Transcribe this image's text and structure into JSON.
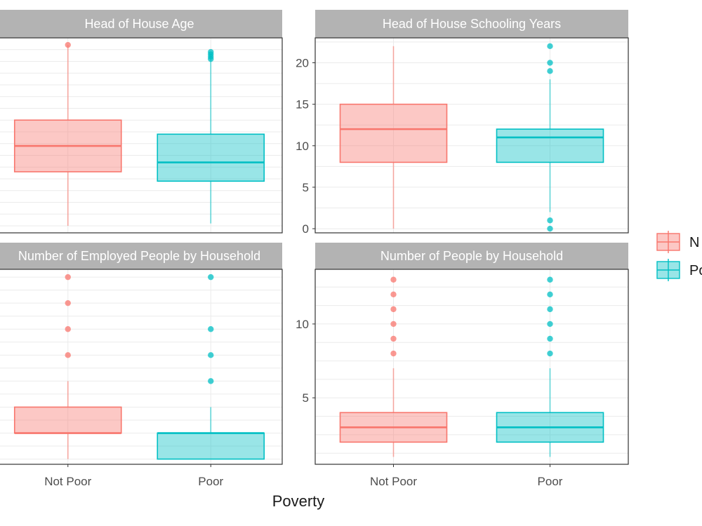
{
  "chart_data": [
    {
      "type": "box",
      "title": "Head of House Age",
      "categories": [
        "Not Poor",
        "Poor"
      ],
      "ylim": [
        17,
        100
      ],
      "yticks": [],
      "boxes": [
        {
          "category": "Not Poor",
          "color": "#F8766D",
          "whisker_low": 20,
          "q1": 43,
          "median": 54,
          "q3": 65,
          "whisker_high": 97,
          "outliers": [
            97
          ]
        },
        {
          "category": "Poor",
          "color": "#00BFC4",
          "whisker_low": 21,
          "q1": 39,
          "median": 47,
          "q3": 59,
          "whisker_high": 93,
          "outliers": [
            91,
            92,
            93,
            94
          ]
        }
      ],
      "show_xticks": false
    },
    {
      "type": "box",
      "title": "Head of House Schooling Years",
      "categories": [
        "Not Poor",
        "Poor"
      ],
      "ylim": [
        -0.5,
        23
      ],
      "yticks": [
        0,
        5,
        10,
        15,
        20
      ],
      "boxes": [
        {
          "category": "Not Poor",
          "color": "#F8766D",
          "whisker_low": 0,
          "q1": 8,
          "median": 12,
          "q3": 15,
          "whisker_high": 22,
          "outliers": []
        },
        {
          "category": "Poor",
          "color": "#00BFC4",
          "whisker_low": 2,
          "q1": 8,
          "median": 11,
          "q3": 12,
          "whisker_high": 18,
          "outliers": [
            0,
            1,
            19,
            20,
            22
          ]
        }
      ],
      "show_xticks": false
    },
    {
      "type": "box",
      "title": "Number of Employed People by Household",
      "categories": [
        "Not Poor",
        "Poor"
      ],
      "ylim": [
        -0.2,
        7.3
      ],
      "yticks": [],
      "boxes": [
        {
          "category": "Not Poor",
          "color": "#F8766D",
          "whisker_low": 0,
          "q1": 1,
          "median": 1,
          "q3": 2,
          "whisker_high": 3,
          "outliers": [
            4,
            5,
            6,
            7
          ]
        },
        {
          "category": "Poor",
          "color": "#00BFC4",
          "whisker_low": 0,
          "q1": 0,
          "median": 1,
          "q3": 1,
          "whisker_high": 2,
          "outliers": [
            3,
            4,
            5,
            7
          ]
        }
      ],
      "show_xticks": true
    },
    {
      "type": "box",
      "title": "Number of People by Household",
      "categories": [
        "Not Poor",
        "Poor"
      ],
      "ylim": [
        0.5,
        13.7
      ],
      "yticks": [
        5,
        10
      ],
      "boxes": [
        {
          "category": "Not Poor",
          "color": "#F8766D",
          "whisker_low": 1,
          "q1": 2,
          "median": 3,
          "q3": 4,
          "whisker_high": 7,
          "outliers": [
            8,
            9,
            10,
            11,
            12,
            13
          ]
        },
        {
          "category": "Poor",
          "color": "#00BFC4",
          "whisker_low": 1,
          "q1": 2,
          "median": 3,
          "q3": 4,
          "whisker_high": 7,
          "outliers": [
            8,
            9,
            10,
            11,
            12,
            13
          ]
        }
      ],
      "show_xticks": true
    }
  ],
  "xlabel": "Poverty",
  "legend": {
    "position": "right",
    "entries": [
      {
        "label": "Not Poor",
        "visible_label": "N",
        "color": "#F8766D"
      },
      {
        "label": "Poor",
        "visible_label": "Po",
        "color": "#00BFC4"
      }
    ]
  }
}
